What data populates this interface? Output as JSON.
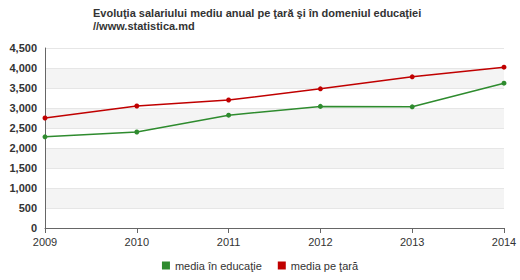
{
  "chart_data": {
    "type": "line",
    "title": "Evoluţia salariului mediu anual pe ţară şi în domeniul educaţiei",
    "subtitle": "//www.statistica.md",
    "categories": [
      "2009",
      "2010",
      "2011",
      "2012",
      "2013",
      "2014"
    ],
    "series": [
      {
        "name": "media în educaţie",
        "color": "#2e8b2e",
        "marker": "circle",
        "values": [
          2280,
          2400,
          2820,
          3040,
          3030,
          3620
        ]
      },
      {
        "name": "media pe ţară",
        "color": "#c00000",
        "marker": "circle",
        "values": [
          2750,
          3050,
          3200,
          3480,
          3780,
          4020
        ]
      }
    ],
    "ylim": [
      0,
      4500
    ],
    "yticks": [
      0,
      500,
      {
        "value": 1000,
        "label": "1,000"
      },
      {
        "value": 1500,
        "label": "1,500"
      },
      {
        "value": 2000,
        "label": "2,000"
      },
      {
        "value": 2500,
        "label": "2,500"
      },
      {
        "value": 3000,
        "label": "3,000"
      },
      {
        "value": 3500,
        "label": "3,500"
      },
      {
        "value": 4000,
        "label": "4,000"
      },
      {
        "value": 4500,
        "label": "4,500"
      }
    ],
    "grid": true,
    "legend": "bottom"
  }
}
